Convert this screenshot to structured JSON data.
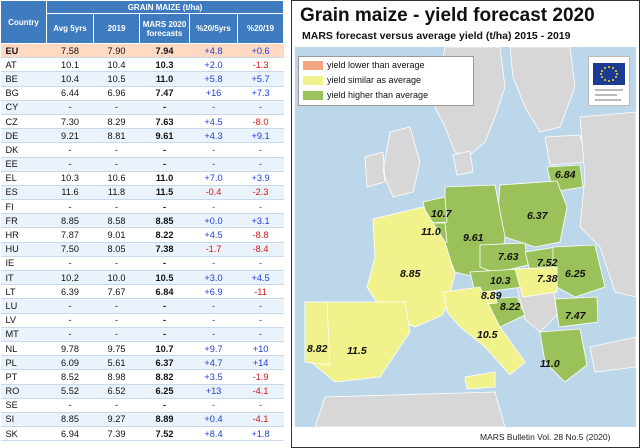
{
  "table": {
    "group_header": "GRAIN MAIZE (t/ha)",
    "columns": [
      "Country",
      "Avg 5yrs",
      "2019",
      "MARS 2020 forecasts",
      "%20/5yrs",
      "%20/19"
    ],
    "rows": [
      [
        "EU",
        "7.58",
        "7.90",
        "7.94",
        "+4.8",
        "+0.6"
      ],
      [
        "AT",
        "10.1",
        "10.4",
        "10.3",
        "+2.0",
        "-1.3"
      ],
      [
        "BE",
        "10.4",
        "10.5",
        "11.0",
        "+5.8",
        "+5.7"
      ],
      [
        "BG",
        "6.44",
        "6.96",
        "7.47",
        "+16",
        "+7.3"
      ],
      [
        "CY",
        "-",
        "-",
        "-",
        "-",
        "-"
      ],
      [
        "CZ",
        "7.30",
        "8.29",
        "7.63",
        "+4.5",
        "-8.0"
      ],
      [
        "DE",
        "9.21",
        "8.81",
        "9.61",
        "+4.3",
        "+9.1"
      ],
      [
        "DK",
        "-",
        "-",
        "-",
        "-",
        "-"
      ],
      [
        "EE",
        "-",
        "-",
        "-",
        "-",
        "-"
      ],
      [
        "EL",
        "10.3",
        "10.6",
        "11.0",
        "+7.0",
        "+3.9"
      ],
      [
        "ES",
        "11.6",
        "11.8",
        "11.5",
        "-0.4",
        "-2.3"
      ],
      [
        "FI",
        "-",
        "-",
        "-",
        "-",
        "-"
      ],
      [
        "FR",
        "8.85",
        "8.58",
        "8.85",
        "+0.0",
        "+3.1"
      ],
      [
        "HR",
        "7.87",
        "9.01",
        "8.22",
        "+4.5",
        "-8.8"
      ],
      [
        "HU",
        "7.50",
        "8.05",
        "7.38",
        "-1.7",
        "-8.4"
      ],
      [
        "IE",
        "-",
        "-",
        "-",
        "-",
        "-"
      ],
      [
        "IT",
        "10.2",
        "10.0",
        "10.5",
        "+3.0",
        "+4.5"
      ],
      [
        "LT",
        "6.39",
        "7.67",
        "6.84",
        "+6.9",
        "-11"
      ],
      [
        "LU",
        "-",
        "-",
        "-",
        "-",
        "-"
      ],
      [
        "LV",
        "-",
        "-",
        "-",
        "-",
        "-"
      ],
      [
        "MT",
        "-",
        "-",
        "-",
        "-",
        "-"
      ],
      [
        "NL",
        "9.78",
        "9.75",
        "10.7",
        "+9.7",
        "+10"
      ],
      [
        "PL",
        "6.09",
        "5.61",
        "6.37",
        "+4.7",
        "+14"
      ],
      [
        "PT",
        "8.52",
        "8.98",
        "8.82",
        "+3.5",
        "-1.9"
      ],
      [
        "RO",
        "5.52",
        "6.52",
        "6.25",
        "+13",
        "-4.1"
      ],
      [
        "SE",
        "-",
        "-",
        "-",
        "-",
        "-"
      ],
      [
        "SI",
        "8.85",
        "9.27",
        "8.89",
        "+0.4",
        "-4.1"
      ],
      [
        "SK",
        "6.94",
        "7.39",
        "7.52",
        "+8.4",
        "+1.8"
      ]
    ]
  },
  "map": {
    "title": "Grain maize - yield forecast 2020",
    "subtitle": "MARS forecast versus average yield (t/ha) 2015 - 2019",
    "legend": [
      {
        "label": "yield lower than average",
        "color": "#f4a582"
      },
      {
        "label": "yield similar as average",
        "color": "#f2f28c"
      },
      {
        "label": "yield higher than average",
        "color": "#9bc25a"
      }
    ],
    "labels": [
      "6.84",
      "10.7",
      "6.37",
      "11.0",
      "9.61",
      "7.63",
      "7.52",
      "10.3",
      "8.89",
      "7.38",
      "8.85",
      "8.22",
      "6.25",
      "7.47",
      "10.5",
      "8.82",
      "11.5",
      "11.0"
    ],
    "source": "MARS Bulletin Vol. 28 No.5 (2020)"
  },
  "chart_data": [
    {
      "type": "table",
      "title": "GRAIN MAIZE (t/ha)",
      "columns": [
        "Country",
        "Avg 5yrs",
        "2019",
        "MARS 2020 forecasts",
        "%20/5yrs",
        "%20/19"
      ],
      "categories": [
        "EU",
        "AT",
        "BE",
        "BG",
        "CY",
        "CZ",
        "DE",
        "DK",
        "EE",
        "EL",
        "ES",
        "FI",
        "FR",
        "HR",
        "HU",
        "IE",
        "IT",
        "LT",
        "LU",
        "LV",
        "MT",
        "NL",
        "PL",
        "PT",
        "RO",
        "SE",
        "SI",
        "SK"
      ]
    },
    {
      "type": "heatmap",
      "title": "Grain maize - yield forecast 2020",
      "subtitle": "MARS forecast versus average yield (t/ha) 2015 - 2019",
      "categories": [
        "LT",
        "NL",
        "PL",
        "BE",
        "DE",
        "CZ",
        "SK",
        "AT",
        "SI",
        "HU",
        "FR",
        "HR",
        "RO",
        "BG",
        "IT",
        "PT",
        "ES",
        "EL"
      ],
      "values": [
        6.84,
        10.7,
        6.37,
        11.0,
        9.61,
        7.63,
        7.52,
        10.3,
        8.89,
        7.38,
        8.85,
        8.22,
        6.25,
        7.47,
        10.5,
        8.82,
        11.5,
        11.0
      ],
      "classes": [
        "higher",
        "higher",
        "higher",
        "higher",
        "higher",
        "higher",
        "higher",
        "higher",
        "similar",
        "similar",
        "similar",
        "higher",
        "higher",
        "higher",
        "similar",
        "similar",
        "similar",
        "higher"
      ],
      "legend": [
        "yield lower than average",
        "yield similar as average",
        "yield higher than average"
      ]
    }
  ]
}
